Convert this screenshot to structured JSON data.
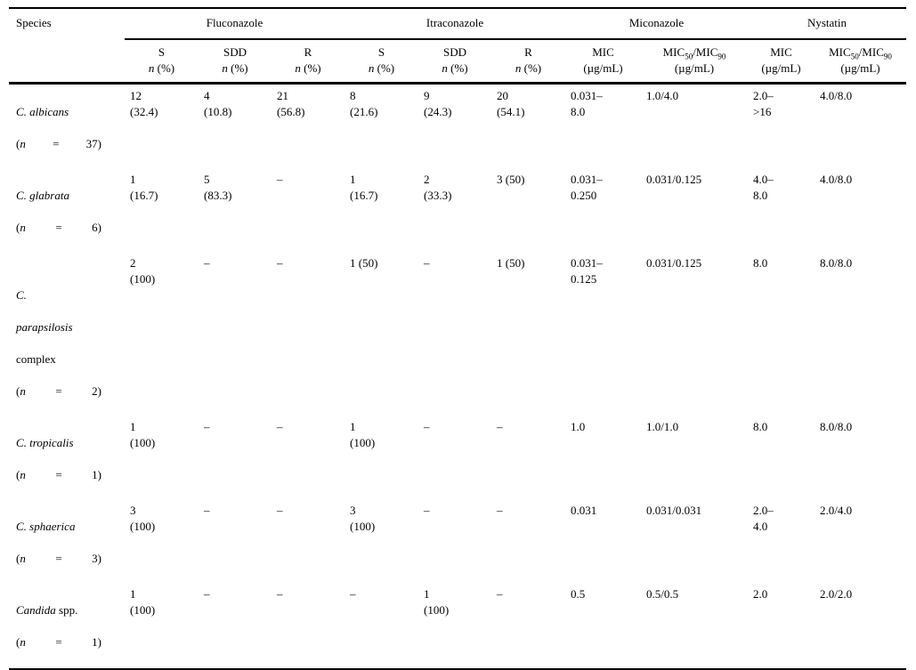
{
  "header": {
    "species_label": "Species",
    "drugs": [
      "Fluconazole",
      "Itraconazole",
      "Miconazole",
      "Nystatin"
    ],
    "sir": [
      "S",
      "SDD",
      "R"
    ],
    "n_italic": "n",
    "n_pct": "(%)",
    "mic_label": "MIC",
    "sub50": "50",
    "slash_mic": "/MIC",
    "sub90": "90",
    "unit": "(µg/mL)"
  },
  "table": {
    "rows": [
      {
        "species": {
          "name": "C. albicans",
          "n_paren": "(",
          "n_var": "n",
          "n_eq": "=",
          "n_count": "37)"
        },
        "cells": [
          "12\n(32.4)",
          "4\n(10.8)",
          "21\n(56.8)",
          "8\n(21.6)",
          "9\n(24.3)",
          "20\n(54.1)",
          "0.031–\n8.0",
          "1.0/4.0",
          "2.0–\n>16",
          "4.0/8.0"
        ]
      },
      {
        "species": {
          "name": "C. glabrata",
          "n_paren": "(",
          "n_var": "n",
          "n_eq": "=",
          "n_count": "6)"
        },
        "cells": [
          "1\n(16.7)",
          "5\n(83.3)",
          "–",
          "1\n(16.7)",
          "2\n(33.3)",
          "3 (50)",
          "0.031–\n0.250",
          "0.031/0.125",
          "4.0–\n8.0",
          "4.0/8.0"
        ]
      },
      {
        "species": {
          "line1": "C.",
          "line2": "parapsilosis",
          "line3": "complex",
          "n_paren": "(",
          "n_var": "n",
          "n_eq": "=",
          "n_count": "2)"
        },
        "cells": [
          "2\n(100)",
          "–",
          "–",
          "1 (50)",
          "–",
          "1 (50)",
          "0.031–\n0.125",
          "0.031/0.125",
          "8.0",
          "8.0/8.0"
        ]
      },
      {
        "species": {
          "name": "C. tropicalis",
          "n_paren": "(",
          "n_var": "n",
          "n_eq": "=",
          "n_count": "1)"
        },
        "cells": [
          "1\n(100)",
          "–",
          "–",
          "1\n(100)",
          "–",
          "–",
          "1.0",
          "1.0/1.0",
          "8.0",
          "8.0/8.0"
        ]
      },
      {
        "species": {
          "name": "C. sphaerica",
          "n_paren": "(",
          "n_var": "n",
          "n_eq": "=",
          "n_count": "3)"
        },
        "cells": [
          "3\n(100)",
          "–",
          "–",
          "3\n(100)",
          "–",
          "–",
          "0.031",
          "0.031/0.031",
          "2.0–\n4.0",
          "2.0/4.0"
        ]
      },
      {
        "species": {
          "name_italic": "Candida",
          "name_roman": "spp.",
          "n_paren": "(",
          "n_var": "n",
          "n_eq": "=",
          "n_count": "1)"
        },
        "cells": [
          "1\n(100)",
          "–",
          "–",
          "–",
          "1\n(100)",
          "–",
          "0.5",
          "0.5/0.5",
          "2.0",
          "2.0/2.0"
        ]
      }
    ]
  }
}
